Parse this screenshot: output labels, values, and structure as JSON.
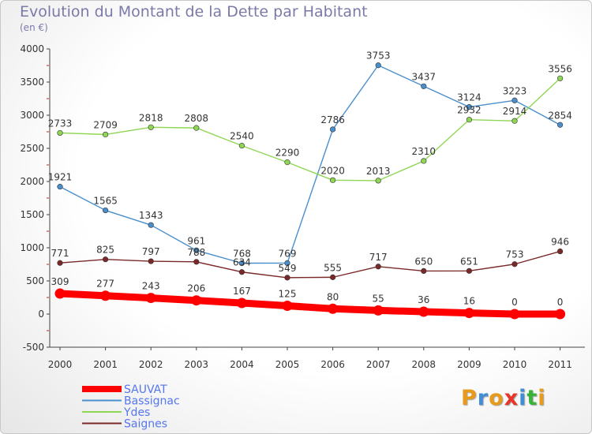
{
  "title": "Evolution du Montant de la Dette par Habitant",
  "subtitle": "(en €)",
  "logo": {
    "text": "Proxiti",
    "colors": [
      "#e89a1a",
      "#3f8ed6",
      "#e89a1a",
      "#e8352a",
      "#3f8ed6",
      "#39b239",
      "#e89a1a"
    ]
  },
  "chart_data": {
    "type": "line",
    "x": [
      "2000",
      "2001",
      "2002",
      "2003",
      "2004",
      "2005",
      "2006",
      "2007",
      "2008",
      "2009",
      "2010",
      "2011"
    ],
    "ylim": [
      -500,
      4000
    ],
    "yticks": [
      -500,
      0,
      500,
      1000,
      1500,
      2000,
      2500,
      3000,
      3500,
      4000
    ],
    "grid": false,
    "legend_position": "bottom-left",
    "series": [
      {
        "name": "SAUVAT",
        "color": "#ff0000",
        "values": [
          309,
          277,
          243,
          206,
          167,
          125,
          80,
          55,
          36,
          16,
          0,
          0
        ]
      },
      {
        "name": "Bassignac",
        "color": "#4a8fcc",
        "values": [
          1921,
          1565,
          1343,
          961,
          768,
          769,
          2786,
          3753,
          3437,
          3124,
          3223,
          2854
        ]
      },
      {
        "name": "Ydes",
        "color": "#8ed653",
        "values": [
          2733,
          2709,
          2818,
          2808,
          2540,
          2290,
          2020,
          2013,
          2310,
          2932,
          2914,
          3556
        ]
      },
      {
        "name": "Saignes",
        "color": "#7a2828",
        "values": [
          771,
          825,
          797,
          788,
          634,
          549,
          555,
          717,
          650,
          651,
          753,
          946
        ]
      }
    ]
  }
}
